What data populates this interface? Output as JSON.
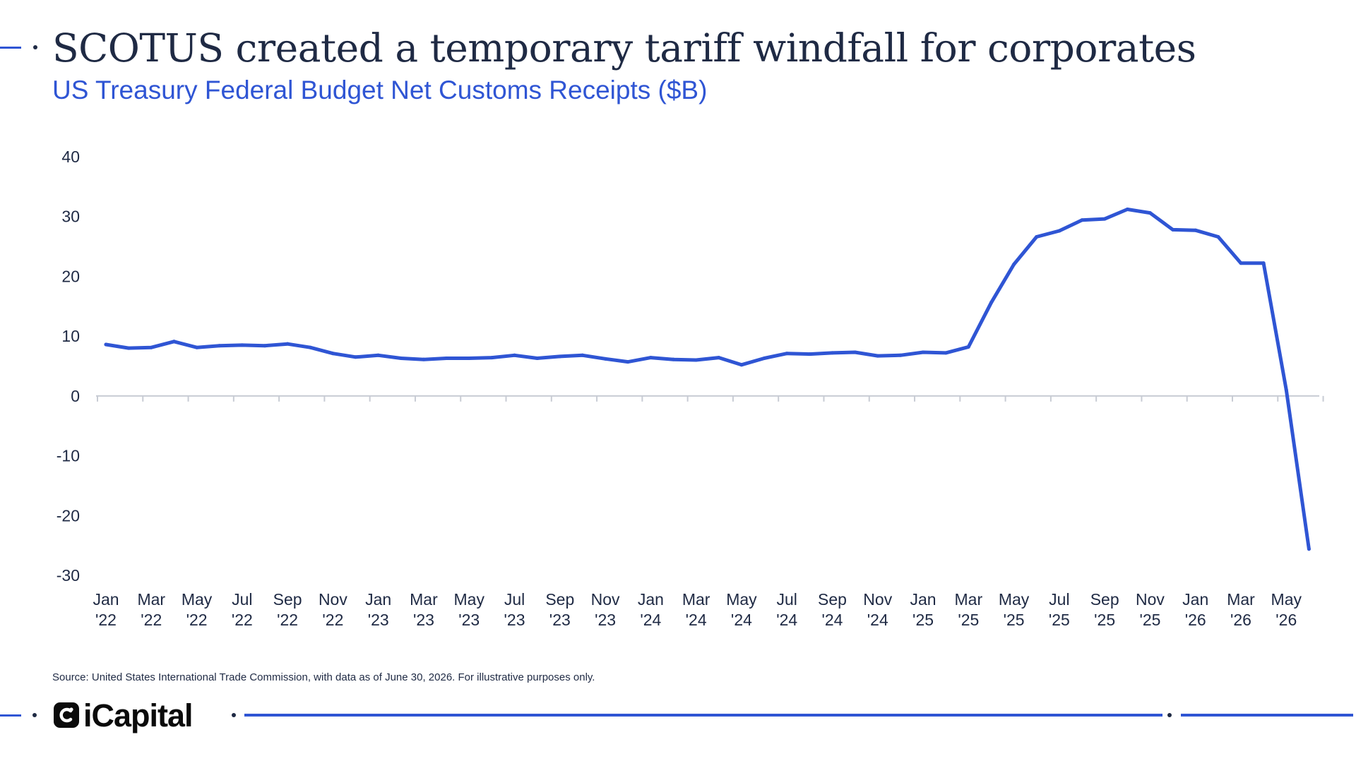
{
  "title": "SCOTUS created a temporary tariff windfall for corporates",
  "subtitle": "US Treasury Federal Budget Net Customs Receipts ($B)",
  "source": "Source: United States International Trade Commission, with data as of June 30, 2026. For illustrative purposes only.",
  "brand": {
    "name": "iCapital",
    "color": "#2f55d4",
    "text_color": "#1f2a44"
  },
  "chart_data": {
    "type": "line",
    "title": "",
    "xlabel": "",
    "ylabel": "",
    "ylim": [
      -30,
      40
    ],
    "yticks": [
      40,
      30,
      20,
      10,
      0,
      -10,
      -20,
      -30
    ],
    "grid": false,
    "x_tick_labels": [
      {
        "month": "Jan",
        "year": "'22"
      },
      {
        "month": "Mar",
        "year": "'22"
      },
      {
        "month": "May",
        "year": "'22"
      },
      {
        "month": "Jul",
        "year": "'22"
      },
      {
        "month": "Sep",
        "year": "'22"
      },
      {
        "month": "Nov",
        "year": "'22"
      },
      {
        "month": "Jan",
        "year": "'23"
      },
      {
        "month": "Mar",
        "year": "'23"
      },
      {
        "month": "May",
        "year": "'23"
      },
      {
        "month": "Jul",
        "year": "'23"
      },
      {
        "month": "Sep",
        "year": "'23"
      },
      {
        "month": "Nov",
        "year": "'23"
      },
      {
        "month": "Jan",
        "year": "'24"
      },
      {
        "month": "Mar",
        "year": "'24"
      },
      {
        "month": "May",
        "year": "'24"
      },
      {
        "month": "Jul",
        "year": "'24"
      },
      {
        "month": "Sep",
        "year": "'24"
      },
      {
        "month": "Nov",
        "year": "'24"
      },
      {
        "month": "Jan",
        "year": "'25"
      },
      {
        "month": "Mar",
        "year": "'25"
      },
      {
        "month": "May",
        "year": "'25"
      },
      {
        "month": "Jul",
        "year": "'25"
      },
      {
        "month": "Sep",
        "year": "'25"
      },
      {
        "month": "Nov",
        "year": "'25"
      },
      {
        "month": "Jan",
        "year": "'26"
      },
      {
        "month": "Mar",
        "year": "'26"
      },
      {
        "month": "May",
        "year": "'26"
      }
    ],
    "series": [
      {
        "color": "#2f55d4",
        "x": [
          "2022-01",
          "2022-02",
          "2022-03",
          "2022-04",
          "2022-05",
          "2022-06",
          "2022-07",
          "2022-08",
          "2022-09",
          "2022-10",
          "2022-11",
          "2022-12",
          "2023-01",
          "2023-02",
          "2023-03",
          "2023-04",
          "2023-05",
          "2023-06",
          "2023-07",
          "2023-08",
          "2023-09",
          "2023-10",
          "2023-11",
          "2023-12",
          "2024-01",
          "2024-02",
          "2024-03",
          "2024-04",
          "2024-05",
          "2024-06",
          "2024-07",
          "2024-08",
          "2024-09",
          "2024-10",
          "2024-11",
          "2024-12",
          "2025-01",
          "2025-02",
          "2025-03",
          "2025-04",
          "2025-05",
          "2025-06",
          "2025-07",
          "2025-08",
          "2025-09",
          "2025-10",
          "2025-11",
          "2025-12",
          "2026-01",
          "2026-02",
          "2026-03",
          "2026-04",
          "2026-05",
          "2026-06"
        ],
        "values": [
          8.6,
          8.0,
          8.1,
          9.1,
          8.1,
          8.4,
          8.5,
          8.4,
          8.7,
          8.1,
          7.1,
          6.5,
          6.8,
          6.3,
          6.1,
          6.3,
          6.3,
          6.4,
          6.8,
          6.3,
          6.6,
          6.8,
          6.2,
          5.7,
          6.4,
          6.1,
          6.0,
          6.4,
          5.2,
          6.3,
          7.1,
          7.0,
          7.2,
          7.3,
          6.7,
          6.8,
          7.3,
          7.2,
          8.2,
          15.6,
          22.0,
          26.6,
          27.6,
          29.4,
          29.6,
          31.2,
          30.6,
          27.8,
          27.7,
          26.6,
          22.2,
          22.2,
          1.0,
          -25.6
        ]
      }
    ]
  }
}
